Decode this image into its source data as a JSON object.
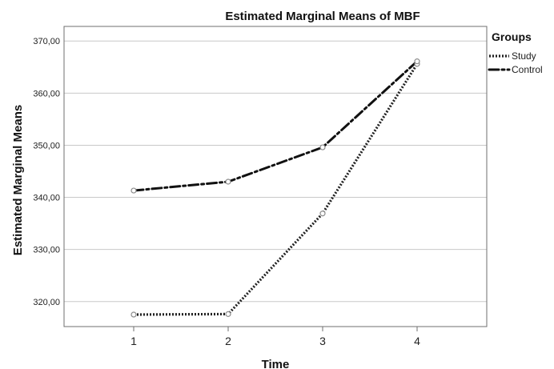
{
  "chart_data": {
    "type": "line",
    "title": "Estimated Marginal Means of MBF",
    "xlabel": "Time",
    "ylabel": "Estimated Marginal Means",
    "categories": [
      "1",
      "2",
      "3",
      "4"
    ],
    "y_ticks": [
      "320,00",
      "330,00",
      "340,00",
      "350,00",
      "360,00",
      "370,00"
    ],
    "y_tick_values": [
      320,
      330,
      340,
      350,
      360,
      370
    ],
    "ylim": [
      315.2,
      372.8
    ],
    "grid": "horizontal",
    "legend": {
      "title": "Groups",
      "placement": "right"
    },
    "series": [
      {
        "name": "Study",
        "style": "dotted",
        "color": "#222222",
        "values": [
          317.5,
          317.6,
          336.9,
          365.6
        ]
      },
      {
        "name": "Control",
        "style": "dash-dot",
        "color": "#111111",
        "values": [
          341.3,
          343.0,
          349.6,
          366.1
        ]
      }
    ]
  }
}
